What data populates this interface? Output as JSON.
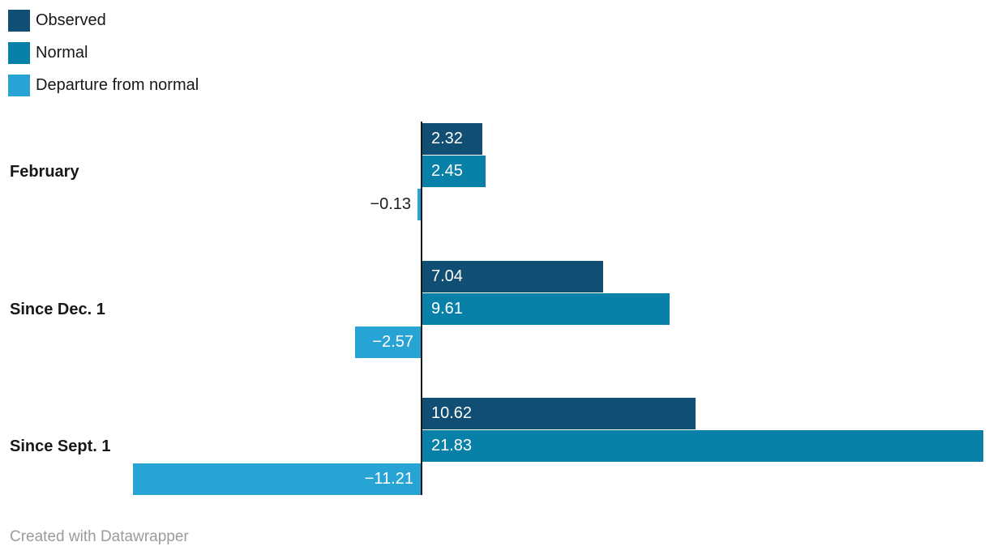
{
  "chart_data": {
    "type": "bar",
    "orientation": "horizontal",
    "title": "",
    "categories": [
      "February",
      "Since Dec. 1",
      "Since Sept. 1"
    ],
    "series": [
      {
        "name": "Observed",
        "color": "#104f73",
        "values": [
          2.32,
          7.04,
          10.62
        ]
      },
      {
        "name": "Normal",
        "color": "#0980a8",
        "values": [
          2.45,
          9.61,
          21.83
        ]
      },
      {
        "name": "Departure from normal",
        "color": "#27a4d4",
        "values": [
          -0.13,
          -2.57,
          -11.21
        ]
      }
    ],
    "legend": {
      "position": "top-left"
    },
    "grid": false,
    "baseline_value": 0,
    "value_label_format": "2-decimals, unicode minus, white inside bar, dark outside when bar too small"
  },
  "colors": {
    "observed": "#104f73",
    "normal": "#0980a8",
    "departure": "#27a4d4",
    "axis": "#1a1a1a",
    "label_dark": "#1d1d1f",
    "label_light": "#ffffff",
    "footer_text": "#9b9b9b",
    "background": "#ffffff"
  },
  "footer": {
    "credit": "Created with Datawrapper"
  }
}
